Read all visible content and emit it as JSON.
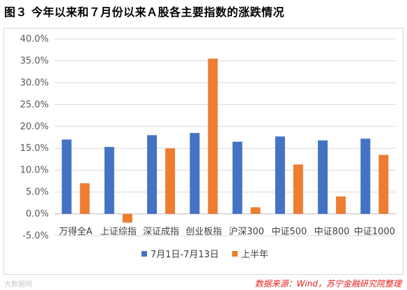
{
  "figure_title": "图３ 今年以来和７月份以来Ａ股各主要指数的涨跌情况",
  "source_note": "数据来源：Wind，苏宁金融研究院整理",
  "watermark": "大数据网",
  "colors": {
    "series1": "#4472c4",
    "series2": "#ed7d31",
    "grid": "#d9d9d9",
    "axis": "#bfbfbf"
  },
  "chart_data": {
    "type": "bar",
    "title": "",
    "xlabel": "",
    "ylabel": "",
    "categories": [
      "万得全A",
      "上证综指",
      "深证成指",
      "创业板指",
      "沪深300",
      "中证500",
      "中证800",
      "中证1000"
    ],
    "series": [
      {
        "name": "7月1日-7月13日",
        "values": [
          17.0,
          15.3,
          18.0,
          18.5,
          16.5,
          17.7,
          16.8,
          17.2
        ]
      },
      {
        "name": "上半年",
        "values": [
          7.0,
          -2.0,
          15.0,
          35.5,
          1.5,
          11.3,
          4.0,
          13.5
        ]
      }
    ],
    "ylim": [
      -5,
      40
    ],
    "yticks": [
      -5,
      0,
      5,
      10,
      15,
      20,
      25,
      30,
      35,
      40
    ],
    "ytick_labels": [
      "-5.0%",
      "0.0%",
      "5.0%",
      "10.0%",
      "15.0%",
      "20.0%",
      "25.0%",
      "30.0%",
      "35.0%",
      "40.0%"
    ],
    "grid": true,
    "legend_position": "bottom-center"
  }
}
